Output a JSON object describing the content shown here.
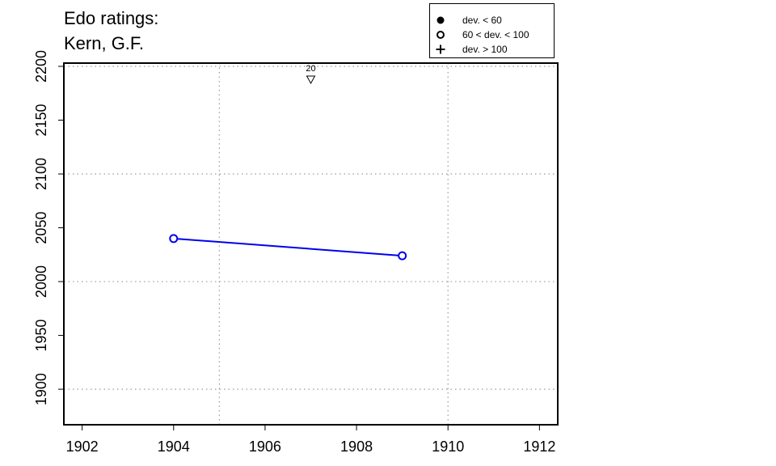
{
  "title": {
    "line1": "Edo ratings:",
    "line2": "Kern, G.F."
  },
  "legend": [
    {
      "symbol": "filled-circle",
      "label": "dev. < 60"
    },
    {
      "symbol": "open-circle",
      "label": "60 < dev. < 100"
    },
    {
      "symbol": "plus",
      "label": "dev. > 100"
    }
  ],
  "colors": {
    "series": "#0000ee",
    "axis": "#000000",
    "grid": "#9a9a9a"
  },
  "chart_data": {
    "type": "line",
    "title": "Edo ratings: Kern, G.F.",
    "xlabel": "",
    "ylabel": "",
    "xlim": [
      1901.6,
      1912.4
    ],
    "ylim": [
      1867,
      2203
    ],
    "x_ticks": [
      1902,
      1904,
      1906,
      1908,
      1910,
      1912
    ],
    "y_ticks": [
      1900,
      1950,
      2000,
      2050,
      2100,
      2150,
      2200
    ],
    "x_grid": [
      1905,
      1910
    ],
    "y_grid": [
      1900,
      2000,
      2100,
      2200
    ],
    "grid": true,
    "legend_position": "top-right",
    "series": [
      {
        "marker": "open-circle",
        "x": [
          1904,
          1909
        ],
        "y": [
          2040,
          2024
        ]
      }
    ],
    "annotations": [
      {
        "type": "triangle-down",
        "x": 1907,
        "y": 2188,
        "label": "20"
      }
    ]
  }
}
